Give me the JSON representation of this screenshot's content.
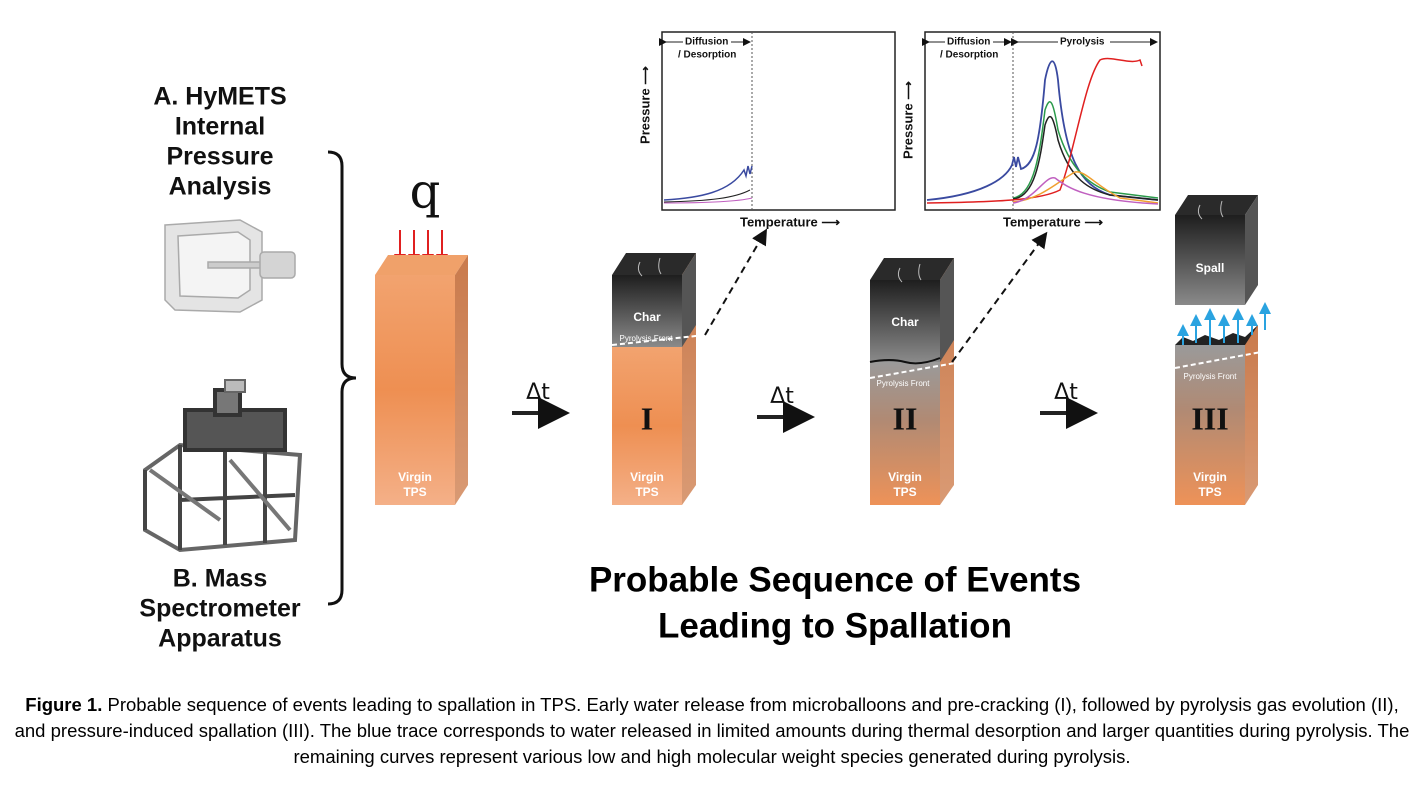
{
  "left_labels": {
    "a": [
      "A. HyMETS",
      "Internal",
      "Pressure",
      "Analysis"
    ],
    "b": [
      "B. Mass",
      "Spectrometer",
      "Apparatus"
    ]
  },
  "heat_flux": "q",
  "blocks": [
    {
      "bottom": [
        "Virgin",
        "TPS"
      ]
    },
    {
      "top": "Char",
      "front": "Pyrolysis Front",
      "stage": "I",
      "bottom": [
        "Virgin",
        "TPS"
      ]
    },
    {
      "top": "Char",
      "front": "Pyrolysis Front",
      "stage": "II",
      "bottom": [
        "Virgin",
        "TPS"
      ]
    },
    {
      "top": "Spall",
      "front": "Pyrolysis Front",
      "stage": "III",
      "bottom": [
        "Virgin",
        "TPS"
      ]
    }
  ],
  "time_steps": [
    "Δt",
    "Δt",
    "Δt"
  ],
  "plots": [
    {
      "regions": [
        "Diffusion",
        "/ Desorption"
      ],
      "y_label": "Pressure ⟶",
      "x_label": "Temperature ⟶"
    },
    {
      "regions": [
        "Diffusion",
        "/ Desorption",
        "Pyrolysis"
      ],
      "y_label": "Pressure ⟶",
      "x_label": "Temperature ⟶"
    }
  ],
  "title": [
    "Probable Sequence of Events",
    "Leading to Spallation"
  ],
  "caption": {
    "label": "Figure 1.",
    "text": "Probable sequence of events leading to spallation in TPS. Early water release from microballoons and pre-cracking (I), followed by pyrolysis gas evolution (II), and pressure-induced spallation (III). The blue trace corresponds to water released in limited amounts during thermal desorption and larger quantities during pyrolysis. The remaining curves represent various low and high molecular weight species generated during pyrolysis."
  }
}
